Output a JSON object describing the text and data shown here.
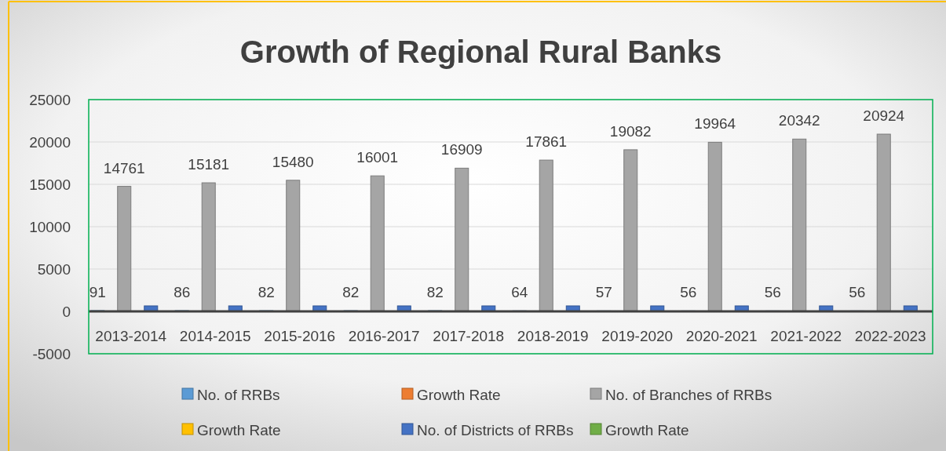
{
  "chart_data": {
    "type": "bar",
    "title": "Growth of Regional Rural Banks",
    "categories": [
      "2013-2014",
      "2014-2015",
      "2015-2016",
      "2016-2017",
      "2017-2018",
      "2018-2019",
      "2019-2020",
      "2020-2021",
      "2021-2022",
      "2022-2023"
    ],
    "series": [
      {
        "name": "No. of RRBs",
        "color": "#5b9bd5",
        "values": [
          91,
          86,
          82,
          82,
          82,
          64,
          57,
          56,
          56,
          56
        ],
        "value_labels": [
          "91",
          "86",
          "82",
          "82",
          "82",
          "64",
          "57",
          "56",
          "56",
          "56"
        ]
      },
      {
        "name": "Growth Rate",
        "color": "#ed7d31",
        "values": [
          null,
          null,
          null,
          null,
          null,
          null,
          null,
          null,
          null,
          null
        ]
      },
      {
        "name": "No. of Branches of RRBs",
        "color": "#a5a5a5",
        "values": [
          14761,
          15181,
          15480,
          16001,
          16909,
          17861,
          19082,
          19964,
          20342,
          20924
        ],
        "value_labels": [
          "14761",
          "15181",
          "15480",
          "16001",
          "16909",
          "17861",
          "19082",
          "19964",
          "20342",
          "20924"
        ]
      },
      {
        "name": "Growth Rate",
        "color": "#ffc000",
        "values": [
          null,
          null,
          null,
          null,
          null,
          null,
          null,
          null,
          null,
          null
        ]
      },
      {
        "name": "No. of Districts of RRBs",
        "color": "#4472c4",
        "values": [
          650,
          650,
          650,
          650,
          650,
          650,
          650,
          650,
          650,
          650
        ]
      },
      {
        "name": "Growth Rate",
        "color": "#70ad47",
        "values": [
          null,
          null,
          null,
          null,
          null,
          null,
          null,
          null,
          null,
          null
        ]
      }
    ],
    "ylim": [
      -5000,
      25000
    ],
    "yticks": [
      -5000,
      0,
      5000,
      10000,
      15000,
      20000,
      25000
    ],
    "grid": "y",
    "legend": "bottom"
  }
}
